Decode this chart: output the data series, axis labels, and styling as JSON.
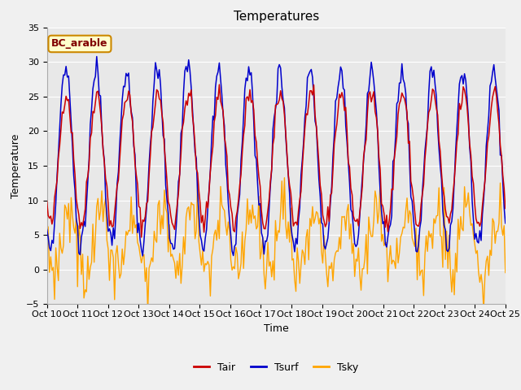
{
  "title": "Temperatures",
  "xlabel": "Time",
  "ylabel": "Temperature",
  "annotation": "BC_arable",
  "xlim_days": 15,
  "ylim": [
    -5,
    35
  ],
  "yticks": [
    -5,
    0,
    5,
    10,
    15,
    20,
    25,
    30,
    35
  ],
  "xtick_labels": [
    "Oct 10",
    "Oct 11",
    "Oct 12",
    "Oct 13",
    "Oct 14",
    "Oct 15",
    "Oct 16",
    "Oct 17",
    "Oct 18",
    "Oct 19",
    "Oct 20",
    "Oct 21",
    "Oct 22",
    "Oct 23",
    "Oct 24",
    "Oct 25"
  ],
  "color_tair": "#cc0000",
  "color_tsurf": "#0000cc",
  "color_tsky": "#ffa500",
  "legend_tair": "Tair",
  "legend_tsurf": "Tsurf",
  "legend_tsky": "Tsky",
  "bg_color": "#e8e8e8",
  "fig_bg": "#f0f0f0",
  "annotation_bg": "#ffffcc",
  "annotation_edge": "#cc8800",
  "annotation_text_color": "#800000",
  "title_fontsize": 11,
  "axis_label_fontsize": 9,
  "tick_fontsize": 8,
  "legend_fontsize": 9,
  "n_days": 15,
  "n_hours": 360,
  "base_temp": 16.0,
  "base_decline": 0.0,
  "amplitude_air": 9.5,
  "amplitude_surf_factor": 1.35,
  "tsky_base": 4.0,
  "tsky_amplitude": 4.5,
  "tsky_noise": 2.2
}
